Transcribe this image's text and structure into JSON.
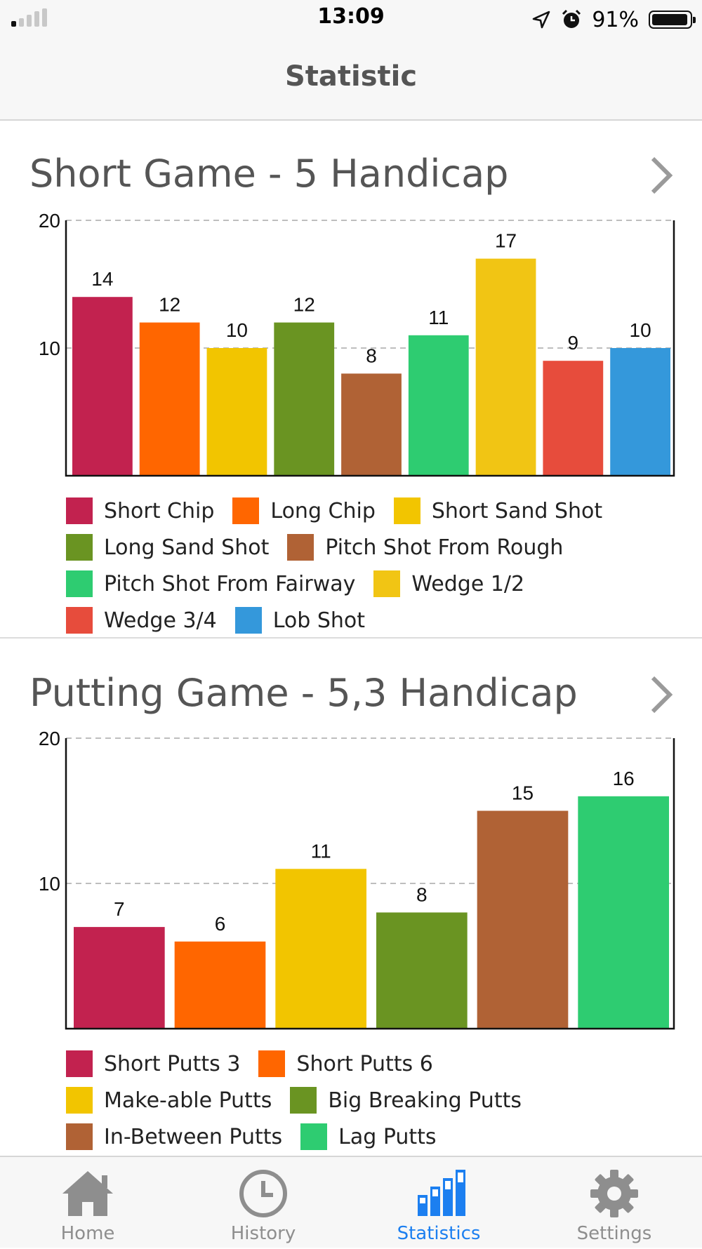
{
  "status_bar": {
    "time": "13:09",
    "battery": "91%"
  },
  "nav": {
    "title": "Statistic"
  },
  "sections": [
    {
      "title": "Short Game - 5 Handicap",
      "legend_rows": [
        [
          0,
          1,
          2
        ],
        [
          3,
          4
        ],
        [
          5,
          6
        ],
        [
          7,
          8
        ]
      ]
    },
    {
      "title": "Putting Game - 5,3 Handicap",
      "legend_rows": [
        [
          0,
          1
        ],
        [
          2,
          3
        ],
        [
          4,
          5
        ]
      ]
    }
  ],
  "chart_data": [
    {
      "type": "bar",
      "title": "Short Game - 5 Handicap",
      "categories": [
        "Short Chip",
        "Long Chip",
        "Short Sand Shot",
        "Long Sand Shot",
        "Pitch Shot From Rough",
        "Pitch Shot From Fairway",
        "Wedge 1/2",
        "Wedge 3/4",
        "Lob Shot"
      ],
      "values": [
        14,
        12,
        10,
        12,
        8,
        11,
        17,
        9,
        10
      ],
      "colors": [
        "#c2224f",
        "#ff6600",
        "#f2c500",
        "#6a9422",
        "#b06235",
        "#2ecc71",
        "#f1c514",
        "#e74c3c",
        "#3498db"
      ],
      "ylim": [
        0,
        20
      ],
      "yticks": [
        10,
        20
      ],
      "grid": "dashed horizontal",
      "legend_position": "bottom"
    },
    {
      "type": "bar",
      "title": "Putting Game - 5,3 Handicap",
      "categories": [
        "Short Putts 3",
        "Short Putts 6",
        "Make-able Putts",
        "Big Breaking Putts",
        "In-Between Putts",
        "Lag Putts"
      ],
      "values": [
        7,
        6,
        11,
        8,
        15,
        16
      ],
      "colors": [
        "#c2224f",
        "#ff6600",
        "#f2c500",
        "#6a9422",
        "#b06235",
        "#2ecc71"
      ],
      "ylim": [
        0,
        20
      ],
      "yticks": [
        10,
        20
      ],
      "grid": "dashed horizontal",
      "legend_position": "bottom"
    }
  ],
  "tabs": [
    {
      "label": "Home",
      "icon": "home-icon",
      "active": false
    },
    {
      "label": "History",
      "icon": "clock-icon",
      "active": false
    },
    {
      "label": "Statistics",
      "icon": "bar-chart-icon",
      "active": true
    },
    {
      "label": "Settings",
      "icon": "gear-icon",
      "active": false
    }
  ],
  "colors": {
    "active_tab": "#1c7ff0",
    "inactive_tab": "#8e8e8e"
  }
}
